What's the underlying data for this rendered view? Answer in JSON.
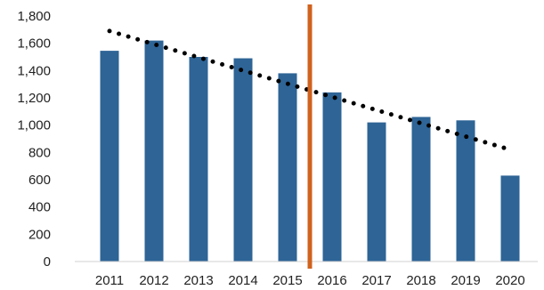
{
  "chart_data": {
    "type": "bar",
    "title": "",
    "xlabel": "",
    "ylabel": "",
    "categories": [
      "2011",
      "2012",
      "2013",
      "2014",
      "2015",
      "2016",
      "2017",
      "2018",
      "2019",
      "2020"
    ],
    "values": [
      1545,
      1620,
      1500,
      1490,
      1380,
      1240,
      1020,
      1060,
      1035,
      630
    ],
    "ylim": [
      0,
      1800
    ],
    "yticks": [
      0,
      200,
      400,
      600,
      800,
      1000,
      1200,
      1400,
      1600,
      1800
    ],
    "ytick_labels": [
      "0",
      "200",
      "400",
      "600",
      "800",
      "1,000",
      "1,200",
      "1,400",
      "1,600",
      "1,800"
    ],
    "bar_color": "#2e6496",
    "trendline": {
      "style": "dotted",
      "color": "#000000",
      "start": 1690,
      "end": 820
    },
    "marker_line": {
      "between": [
        "2015",
        "2016"
      ],
      "color": "#d0621d"
    },
    "grid": false,
    "legend": "none"
  }
}
